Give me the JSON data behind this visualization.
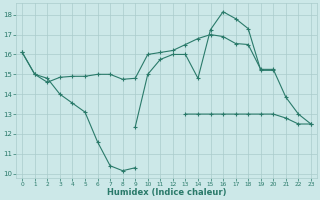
{
  "xlabel": "Humidex (Indice chaleur)",
  "bg_color": "#cce8e8",
  "grid_color": "#aacccc",
  "line_color": "#2a7a6a",
  "xlim": [
    -0.5,
    23.5
  ],
  "ylim": [
    9.8,
    18.6
  ],
  "yticks": [
    10,
    11,
    12,
    13,
    14,
    15,
    16,
    17,
    18
  ],
  "xticks": [
    0,
    1,
    2,
    3,
    4,
    5,
    6,
    7,
    8,
    9,
    10,
    11,
    12,
    13,
    14,
    15,
    16,
    17,
    18,
    19,
    20,
    21,
    22,
    23
  ],
  "line_A_x": [
    0,
    1,
    2,
    3,
    4,
    5,
    6,
    7,
    8,
    9
  ],
  "line_A_y": [
    16.1,
    15.0,
    14.8,
    14.0,
    13.55,
    13.1,
    11.6,
    10.4,
    10.15,
    10.3
  ],
  "line_B_x": [
    0,
    1,
    2,
    3,
    4,
    5,
    6,
    7,
    8,
    9,
    10,
    11,
    12,
    13,
    14,
    15,
    16,
    17,
    18,
    19,
    20,
    21,
    22,
    23
  ],
  "line_B_y": [
    16.1,
    15.0,
    14.6,
    14.85,
    14.9,
    14.9,
    15.0,
    15.0,
    14.75,
    14.8,
    16.0,
    16.1,
    16.2,
    16.5,
    16.8,
    17.0,
    16.9,
    16.55,
    16.5,
    15.25,
    15.25,
    13.85,
    13.0,
    12.5
  ],
  "line_C_x": [
    9,
    10,
    11,
    12,
    13,
    14,
    15,
    16,
    17,
    18,
    19,
    20
  ],
  "line_C_y": [
    12.35,
    15.0,
    15.75,
    16.0,
    16.0,
    14.8,
    17.25,
    18.15,
    17.8,
    17.3,
    15.2,
    15.2
  ],
  "line_D_x": [
    13,
    14,
    15,
    16,
    17,
    18,
    19,
    20,
    21,
    22,
    23
  ],
  "line_D_y": [
    13.0,
    13.0,
    13.0,
    13.0,
    13.0,
    13.0,
    13.0,
    13.0,
    12.8,
    12.5,
    12.5
  ]
}
